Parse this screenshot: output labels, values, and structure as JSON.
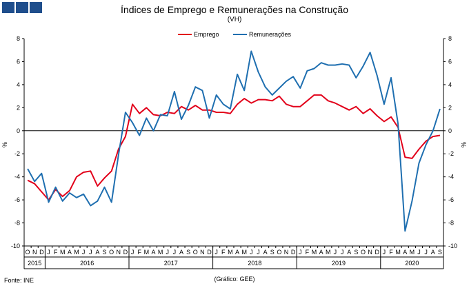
{
  "title": "Índices de Emprego  e Remunerações na Construção",
  "subtitle": "(VH)",
  "source": "Fonte: INE",
  "credit": "(Gráfico: GEE)",
  "colors": {
    "emprego": "#e2001a",
    "remuneracoes": "#1f6fb0",
    "logo": "#1f4e8c"
  },
  "chart_data": {
    "type": "line",
    "ylabel": "%",
    "y2label": "%",
    "ylim": [
      -10,
      8
    ],
    "yticks": [
      -10,
      -8,
      -6,
      -4,
      -2,
      0,
      2,
      4,
      6,
      8
    ],
    "grid": false,
    "legend_position": "top-center",
    "x": [
      "O",
      "N",
      "D",
      "J",
      "F",
      "M",
      "A",
      "M",
      "J",
      "J",
      "A",
      "S",
      "O",
      "N",
      "D",
      "J",
      "F",
      "M",
      "A",
      "M",
      "J",
      "J",
      "A",
      "S",
      "O",
      "N",
      "D",
      "J",
      "F",
      "M",
      "A",
      "M",
      "J",
      "J",
      "A",
      "S",
      "O",
      "N",
      "D",
      "J",
      "F",
      "M",
      "A",
      "M",
      "J",
      "J",
      "A",
      "S",
      "O",
      "N",
      "D",
      "J",
      "F",
      "M",
      "A",
      "M",
      "J",
      "J",
      "A",
      "S"
    ],
    "years": [
      {
        "label": "2015",
        "start": 0,
        "count": 3
      },
      {
        "label": "2016",
        "start": 3,
        "count": 12
      },
      {
        "label": "2017",
        "start": 15,
        "count": 12
      },
      {
        "label": "2018",
        "start": 27,
        "count": 12
      },
      {
        "label": "2019",
        "start": 39,
        "count": 12
      },
      {
        "label": "2020",
        "start": 51,
        "count": 9
      }
    ],
    "series": [
      {
        "name": "Emprego",
        "color": "#e2001a",
        "values": [
          -4.3,
          -4.6,
          -5.3,
          -6.0,
          -5.1,
          -5.7,
          -5.2,
          -4.0,
          -3.6,
          -3.5,
          -4.8,
          -4.1,
          -3.5,
          -1.6,
          -0.5,
          2.3,
          1.5,
          2.0,
          1.4,
          1.3,
          1.6,
          1.5,
          2.1,
          1.8,
          2.2,
          1.8,
          1.8,
          1.6,
          1.6,
          1.5,
          2.3,
          2.8,
          2.4,
          2.7,
          2.7,
          2.6,
          3.0,
          2.3,
          2.1,
          2.1,
          2.6,
          3.1,
          3.1,
          2.6,
          2.4,
          2.1,
          1.8,
          2.1,
          1.5,
          1.9,
          1.3,
          0.8,
          1.2,
          0.3,
          -2.3,
          -2.4,
          -1.6,
          -0.9,
          -0.5,
          -0.4
        ]
      },
      {
        "name": "Remunerações",
        "color": "#1f6fb0",
        "values": [
          -3.3,
          -4.4,
          -3.7,
          -6.2,
          -4.9,
          -6.1,
          -5.4,
          -5.8,
          -5.5,
          -6.5,
          -6.1,
          -4.9,
          -6.2,
          -2.1,
          1.6,
          0.7,
          -0.4,
          1.1,
          0.0,
          1.4,
          1.3,
          3.4,
          1.0,
          2.2,
          3.8,
          3.5,
          1.1,
          3.1,
          2.3,
          1.9,
          4.9,
          3.5,
          6.9,
          5.1,
          3.8,
          3.1,
          3.7,
          4.3,
          4.7,
          3.7,
          5.2,
          5.4,
          5.9,
          5.7,
          5.7,
          5.8,
          5.7,
          4.6,
          5.6,
          6.8,
          4.8,
          2.3,
          4.6,
          0.6,
          -8.7,
          -6.1,
          -2.8,
          -1.2,
          0.0,
          1.9
        ]
      }
    ]
  }
}
